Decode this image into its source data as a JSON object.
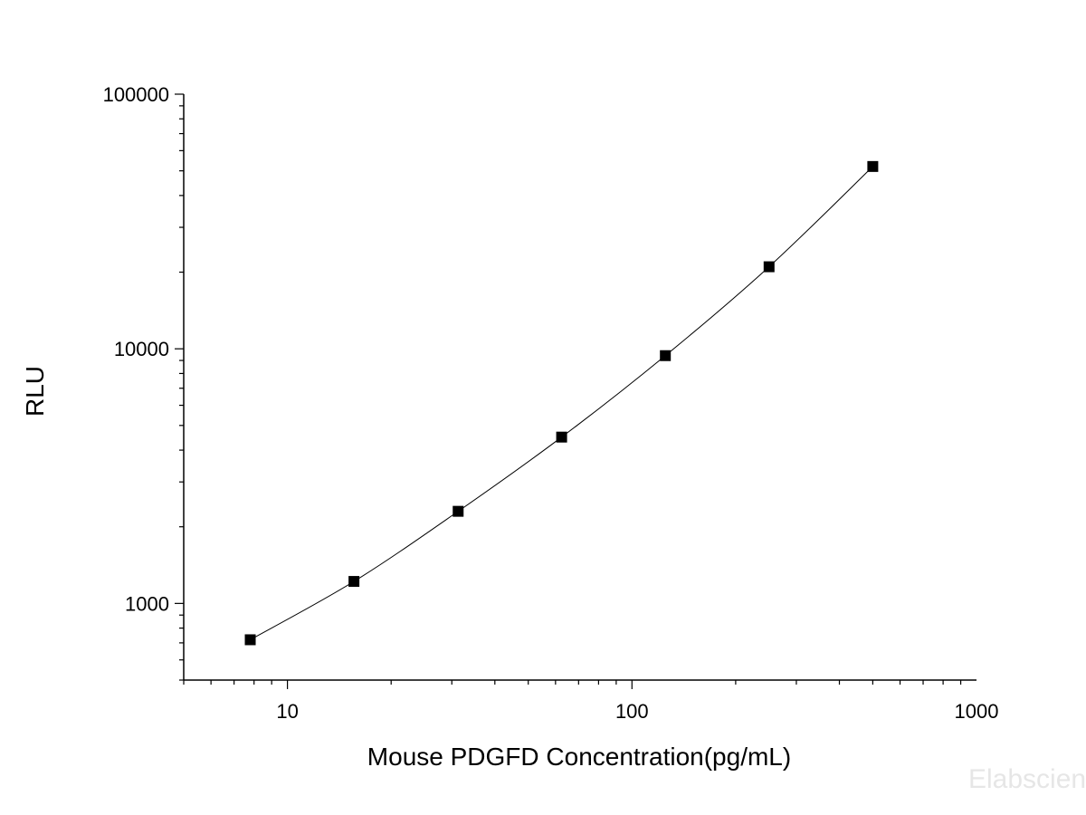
{
  "chart_data": {
    "type": "line",
    "xlabel": "Mouse PDGFD Concentration(pg/mL)",
    "ylabel": "RLU",
    "xscale": "log",
    "yscale": "log",
    "xlim": [
      5,
      1000
    ],
    "ylim": [
      500,
      100000
    ],
    "x_ticks": [
      10,
      100,
      1000
    ],
    "x_tick_labels": [
      "10",
      "100",
      "1000"
    ],
    "y_ticks": [
      1000,
      10000,
      100000
    ],
    "y_tick_labels": [
      "1000",
      "10000",
      "100000"
    ],
    "grid": false,
    "legend": "none",
    "series": [
      {
        "marker": "square",
        "color": "#000000",
        "x": [
          7.8,
          15.6,
          31.3,
          62.5,
          125,
          250,
          500
        ],
        "y": [
          720,
          1220,
          2300,
          4500,
          9400,
          21000,
          52000
        ]
      }
    ]
  },
  "watermark": "Elabscience"
}
